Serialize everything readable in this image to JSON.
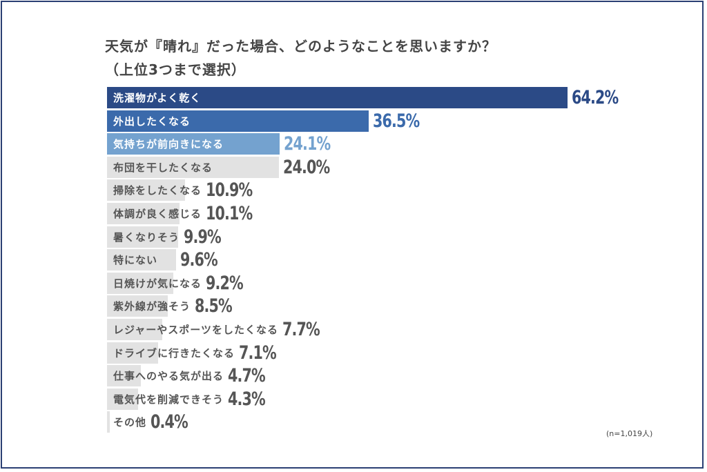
{
  "chart_data": {
    "type": "bar",
    "orientation": "horizontal",
    "title": "天気が『晴れ』だった場合、どのようなことを思いますか？",
    "subtitle": "（上位3つまで選択）",
    "note": "(n=1,019人)",
    "categories": [
      "洗濯物がよく乾く",
      "外出したくなる",
      "気持ちが前向きになる",
      "布団を干したくなる",
      "掃除をしたくなる",
      "体調が良く感じる",
      "暑くなりそう",
      "特にない",
      "日焼けが気になる",
      "紫外線が強そう",
      "レジャーやスポーツをしたくなる",
      "ドライブに行きたくなる",
      "仕事へのやる気が出る",
      "電気代を削減できそう",
      "その他"
    ],
    "values": [
      64.2,
      36.5,
      24.1,
      24.0,
      10.9,
      10.1,
      9.9,
      9.6,
      9.2,
      8.5,
      7.7,
      7.1,
      4.7,
      4.3,
      0.4
    ],
    "value_labels": [
      "64.2%",
      "36.5%",
      "24.1%",
      "24.0%",
      "10.9%",
      "10.1%",
      "9.9%",
      "9.6%",
      "9.2%",
      "8.5%",
      "7.7%",
      "7.1%",
      "4.7%",
      "4.3%",
      "0.4%"
    ],
    "unit": "%",
    "bar_colors": [
      "#2b4a86",
      "#3b6aab",
      "#74a2cf",
      "#e2e2e2"
    ],
    "value_colors": [
      "#2b4a86",
      "#3b6aab",
      "#74a2cf",
      "#555555"
    ],
    "grid": false,
    "legend": "none"
  }
}
